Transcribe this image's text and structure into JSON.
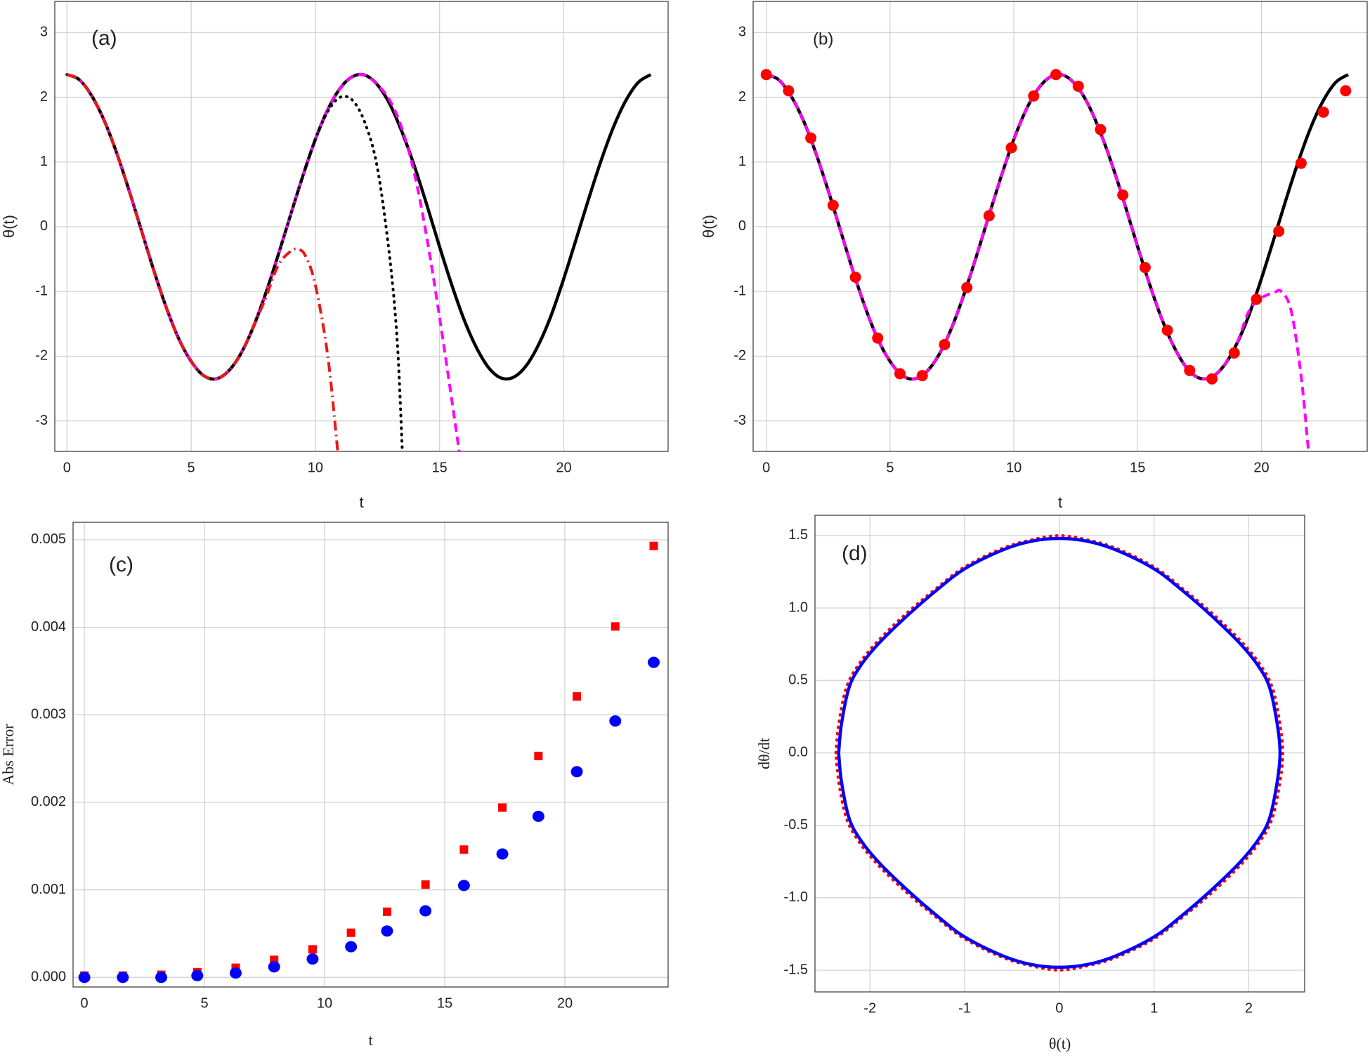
{
  "chart_data": [
    {
      "type": "line",
      "label": "(a)",
      "xlabel": "t",
      "ylabel": "θ(t)",
      "grid": true,
      "xlim": [
        -0.49,
        24.2
      ],
      "ylim": [
        -3.47,
        3.48
      ],
      "xticks": [
        0,
        5,
        10,
        15,
        20
      ],
      "yticks": [
        -3,
        -2,
        -1,
        0,
        1,
        2,
        3
      ],
      "series": [
        {
          "color": "#000000",
          "style": "solid",
          "x": [
            0,
            0.5,
            1,
            1.5,
            2,
            2.5,
            3,
            3.5,
            4,
            4.5,
            5,
            5.5,
            6,
            6.5,
            7,
            7.5,
            8,
            8.5,
            9,
            9.5,
            10,
            10.5,
            11,
            11.5,
            12,
            12.5,
            13,
            13.5,
            14,
            14.5,
            15,
            15.5,
            16,
            16.5,
            17,
            17.5,
            18,
            18.5,
            19,
            19.5,
            20,
            20.5,
            21,
            21.5,
            22,
            22.5,
            23,
            23.5
          ],
          "values": [
            2.35,
            2.27,
            2.02,
            1.64,
            1.14,
            0.56,
            -0.06,
            -0.68,
            -1.25,
            -1.73,
            -2.08,
            -2.3,
            -2.35,
            -2.23,
            -1.96,
            -1.55,
            -1.03,
            -0.44,
            0.18,
            0.79,
            1.35,
            1.81,
            2.14,
            2.32,
            2.34,
            2.19,
            1.89,
            1.45,
            0.92,
            0.32,
            -0.31,
            -0.91,
            -1.45,
            -1.88,
            -2.19,
            -2.34,
            -2.32,
            -2.14,
            -1.81,
            -1.36,
            -0.8,
            -0.19,
            0.43,
            1.02,
            1.54,
            1.95,
            2.23,
            2.35
          ]
        },
        {
          "color": "#ff00ff",
          "style": "dash",
          "x": [
            0,
            0.5,
            1,
            1.5,
            2,
            2.5,
            3,
            3.5,
            4,
            4.5,
            5,
            5.5,
            6,
            6.5,
            7,
            7.5,
            8,
            8.5,
            9,
            9.5,
            10,
            10.5,
            11,
            11.5,
            12,
            12.5,
            13,
            13.5,
            14,
            14.5,
            15,
            15.5,
            15.8
          ],
          "values": [
            2.35,
            2.27,
            2.02,
            1.64,
            1.14,
            0.56,
            -0.06,
            -0.68,
            -1.25,
            -1.73,
            -2.08,
            -2.3,
            -2.35,
            -2.23,
            -1.96,
            -1.55,
            -1.03,
            -0.44,
            0.18,
            0.79,
            1.35,
            1.81,
            2.14,
            2.32,
            2.34,
            2.19,
            1.95,
            1.5,
            0.8,
            -0.2,
            -1.4,
            -2.7,
            -3.5
          ]
        },
        {
          "color": "#000000",
          "style": "dot",
          "x": [
            0,
            0.5,
            1,
            1.5,
            2,
            2.5,
            3,
            3.5,
            4,
            4.5,
            5,
            5.5,
            6,
            6.5,
            7,
            7.5,
            8,
            8.5,
            9,
            9.5,
            10,
            10.5,
            11,
            11.5,
            12,
            12.5,
            13,
            13.3,
            13.5
          ],
          "values": [
            2.35,
            2.27,
            2.02,
            1.64,
            1.14,
            0.56,
            -0.06,
            -0.68,
            -1.25,
            -1.73,
            -2.08,
            -2.3,
            -2.35,
            -2.23,
            -1.96,
            -1.55,
            -1.03,
            -0.44,
            0.18,
            0.79,
            1.35,
            1.78,
            2.0,
            1.95,
            1.6,
            0.9,
            -0.5,
            -1.8,
            -3.47
          ]
        },
        {
          "color": "#e8191b",
          "style": "dashdot",
          "x": [
            0,
            0.5,
            1,
            1.5,
            2,
            2.5,
            3,
            3.5,
            4,
            4.5,
            5,
            5.5,
            6,
            6.5,
            7,
            7.5,
            8,
            8.5,
            9,
            9.3,
            9.6,
            10,
            10.5,
            10.9
          ],
          "values": [
            2.35,
            2.27,
            2.02,
            1.64,
            1.14,
            0.56,
            -0.06,
            -0.68,
            -1.25,
            -1.73,
            -2.08,
            -2.3,
            -2.35,
            -2.23,
            -1.96,
            -1.55,
            -1.1,
            -0.6,
            -0.38,
            -0.35,
            -0.45,
            -0.9,
            -2.0,
            -3.47
          ]
        }
      ]
    },
    {
      "type": "line",
      "label": "(b)",
      "xlabel": "t",
      "ylabel": "θ(t)",
      "grid": true,
      "xlim": [
        -0.53,
        24.27
      ],
      "ylim": [
        -3.47,
        3.48
      ],
      "xticks": [
        0,
        5,
        10,
        15,
        20
      ],
      "yticks": [
        -3,
        -2,
        -1,
        0,
        1,
        2,
        3
      ],
      "series": [
        {
          "color": "#000000",
          "style": "solid",
          "x": [
            0,
            0.5,
            1,
            1.5,
            2,
            2.5,
            3,
            3.5,
            4,
            4.5,
            5,
            5.5,
            6,
            6.5,
            7,
            7.5,
            8,
            8.5,
            9,
            9.5,
            10,
            10.5,
            11,
            11.5,
            12,
            12.5,
            13,
            13.5,
            14,
            14.5,
            15,
            15.5,
            16,
            16.5,
            17,
            17.5,
            18,
            18.5,
            19,
            19.5,
            20,
            20.5,
            21,
            21.5,
            22,
            22.5,
            23,
            23.5
          ],
          "values": [
            2.35,
            2.27,
            2.02,
            1.64,
            1.14,
            0.56,
            -0.06,
            -0.68,
            -1.25,
            -1.73,
            -2.08,
            -2.3,
            -2.35,
            -2.23,
            -1.96,
            -1.55,
            -1.03,
            -0.44,
            0.18,
            0.79,
            1.35,
            1.81,
            2.14,
            2.32,
            2.34,
            2.19,
            1.89,
            1.45,
            0.92,
            0.32,
            -0.31,
            -0.91,
            -1.45,
            -1.88,
            -2.19,
            -2.34,
            -2.32,
            -2.14,
            -1.81,
            -1.36,
            -0.8,
            -0.19,
            0.43,
            1.02,
            1.54,
            1.95,
            2.23,
            2.35
          ]
        },
        {
          "color": "#ff00ff",
          "style": "dash",
          "x": [
            0,
            0.5,
            1,
            1.5,
            2,
            2.5,
            3,
            3.5,
            4,
            4.5,
            5,
            5.5,
            6,
            6.5,
            7,
            7.5,
            8,
            8.5,
            9,
            9.5,
            10,
            10.5,
            11,
            11.5,
            12,
            12.5,
            13,
            13.5,
            14,
            14.5,
            15,
            15.5,
            16,
            16.5,
            17,
            17.5,
            18,
            18.5,
            19,
            19.5,
            20,
            20.5,
            20.8,
            21.2,
            21.6,
            21.9
          ],
          "values": [
            2.35,
            2.27,
            2.02,
            1.64,
            1.14,
            0.56,
            -0.06,
            -0.68,
            -1.25,
            -1.73,
            -2.08,
            -2.3,
            -2.35,
            -2.23,
            -1.96,
            -1.55,
            -1.03,
            -0.44,
            0.18,
            0.79,
            1.35,
            1.81,
            2.14,
            2.32,
            2.34,
            2.19,
            1.89,
            1.45,
            0.92,
            0.32,
            -0.31,
            -0.91,
            -1.45,
            -1.88,
            -2.19,
            -2.34,
            -2.32,
            -2.14,
            -1.81,
            -1.3,
            -1.1,
            -1.02,
            -1.0,
            -1.3,
            -2.3,
            -3.47
          ]
        },
        {
          "color": "#ff0000",
          "style": "none",
          "marker": "circle",
          "x": [
            0,
            0.9,
            1.8,
            2.7,
            3.6,
            4.5,
            5.4,
            6.3,
            7.2,
            8.1,
            9.0,
            9.9,
            10.8,
            11.7,
            12.6,
            13.5,
            14.4,
            15.3,
            16.2,
            17.1,
            18.0,
            18.9,
            19.8,
            20.7,
            21.6,
            22.5,
            23.4
          ],
          "values": [
            2.35,
            2.1,
            1.37,
            0.33,
            -0.78,
            -1.72,
            -2.27,
            -2.3,
            -1.82,
            -0.94,
            0.17,
            1.22,
            2.02,
            2.35,
            2.17,
            1.5,
            0.49,
            -0.63,
            -1.6,
            -2.22,
            -2.35,
            -1.95,
            -1.12,
            -0.07,
            0.98,
            1.77,
            2.1
          ]
        }
      ]
    },
    {
      "type": "scatter",
      "label": "(c)",
      "xlabel": "t",
      "ylabel": "Abs Error",
      "grid": true,
      "xlim": [
        -0.47,
        24.3
      ],
      "ylim": [
        -0.00011,
        0.0052
      ],
      "xticks": [
        0,
        5,
        10,
        15,
        20
      ],
      "yticks": [
        {
          "value": 0,
          "label": "0.000"
        },
        0.001,
        0.002,
        0.003,
        0.004,
        0.005
      ],
      "series": [
        {
          "color": "#ff0000",
          "style": "none",
          "marker": "square",
          "x": [
            0,
            1.6,
            3.2,
            4.7,
            6.3,
            7.9,
            9.5,
            11.1,
            12.6,
            14.2,
            15.8,
            17.4,
            18.9,
            20.5,
            22.1,
            23.7
          ],
          "values": [
            2e-05,
            2e-05,
            3e-05,
            6e-05,
            0.00011,
            0.0002,
            0.00032,
            0.00051,
            0.00075,
            0.00106,
            0.00146,
            0.00194,
            0.00253,
            0.00321,
            0.00401,
            0.00493
          ]
        },
        {
          "color": "#0000ff",
          "style": "none",
          "marker": "circle",
          "x": [
            0,
            1.6,
            3.2,
            4.7,
            6.3,
            7.9,
            9.5,
            11.1,
            12.6,
            14.2,
            15.8,
            17.4,
            18.9,
            20.5,
            22.1,
            23.7
          ],
          "values": [
            0,
            0,
            0,
            2e-05,
            5e-05,
            0.00012,
            0.00021,
            0.00035,
            0.00053,
            0.00076,
            0.00105,
            0.00141,
            0.00184,
            0.00235,
            0.00293,
            0.0036
          ]
        }
      ]
    },
    {
      "type": "line",
      "label": "(d)",
      "xlabel": "θ(t)",
      "ylabel": "dθ/dt",
      "grid": true,
      "xlim": [
        -2.58,
        2.59
      ],
      "ylim": [
        -1.65,
        1.64
      ],
      "xticks": [
        -2,
        -1,
        0,
        1,
        2
      ],
      "yticks": [
        -1.5,
        {
          "value": -1,
          "label": "-1.0"
        },
        -0.5,
        {
          "value": 0,
          "label": "0.0"
        },
        0.5,
        {
          "value": 1,
          "label": "1.0"
        },
        1.5
      ],
      "series": [
        {
          "color": "#ff0000",
          "style": "dot",
          "x": [
            -2.36,
            -2.33,
            -2.25,
            -2.12,
            -1.92,
            -1.62,
            -1.31,
            -1.01,
            -0.61,
            -0.3,
            0,
            0.3,
            0.61,
            1.01,
            1.31,
            1.62,
            1.92,
            2.12,
            2.25,
            2.33,
            2.36,
            2.33,
            2.25,
            2.12,
            1.92,
            1.62,
            1.31,
            1.01,
            0.61,
            0.3,
            0,
            -0.3,
            -0.61,
            -1.01,
            -1.31,
            -1.62,
            -1.92,
            -2.12,
            -2.25,
            -2.33,
            -2.36
          ],
          "values": [
            0,
            0.2,
            0.45,
            0.61,
            0.77,
            0.96,
            1.13,
            1.28,
            1.41,
            1.47,
            1.5,
            1.47,
            1.41,
            1.28,
            1.13,
            0.96,
            0.77,
            0.61,
            0.45,
            0.2,
            0,
            -0.2,
            -0.45,
            -0.61,
            -0.77,
            -0.96,
            -1.13,
            -1.28,
            -1.41,
            -1.47,
            -1.5,
            -1.47,
            -1.41,
            -1.28,
            -1.13,
            -0.96,
            -0.77,
            -0.61,
            -0.45,
            -0.2,
            0
          ]
        },
        {
          "color": "#0000ff",
          "style": "solid",
          "x": [
            -2.33,
            -2.3,
            -2.22,
            -2.1,
            -1.9,
            -1.6,
            -1.3,
            -1.0,
            -0.6,
            -0.3,
            0,
            0.3,
            0.6,
            1.0,
            1.3,
            1.6,
            1.9,
            2.1,
            2.22,
            2.3,
            2.33,
            2.3,
            2.22,
            2.1,
            1.9,
            1.6,
            1.3,
            1.0,
            0.6,
            0.3,
            0,
            -0.3,
            -0.6,
            -1.0,
            -1.3,
            -1.6,
            -1.9,
            -2.1,
            -2.22,
            -2.3,
            -2.33
          ],
          "values": [
            0,
            0.2,
            0.45,
            0.6,
            0.76,
            0.95,
            1.12,
            1.27,
            1.4,
            1.46,
            1.48,
            1.46,
            1.4,
            1.27,
            1.12,
            0.95,
            0.76,
            0.6,
            0.45,
            0.2,
            0,
            -0.2,
            -0.45,
            -0.6,
            -0.76,
            -0.95,
            -1.12,
            -1.27,
            -1.4,
            -1.46,
            -1.48,
            -1.46,
            -1.4,
            -1.27,
            -1.12,
            -0.95,
            -0.76,
            -0.6,
            -0.45,
            -0.2,
            0
          ]
        }
      ]
    }
  ]
}
